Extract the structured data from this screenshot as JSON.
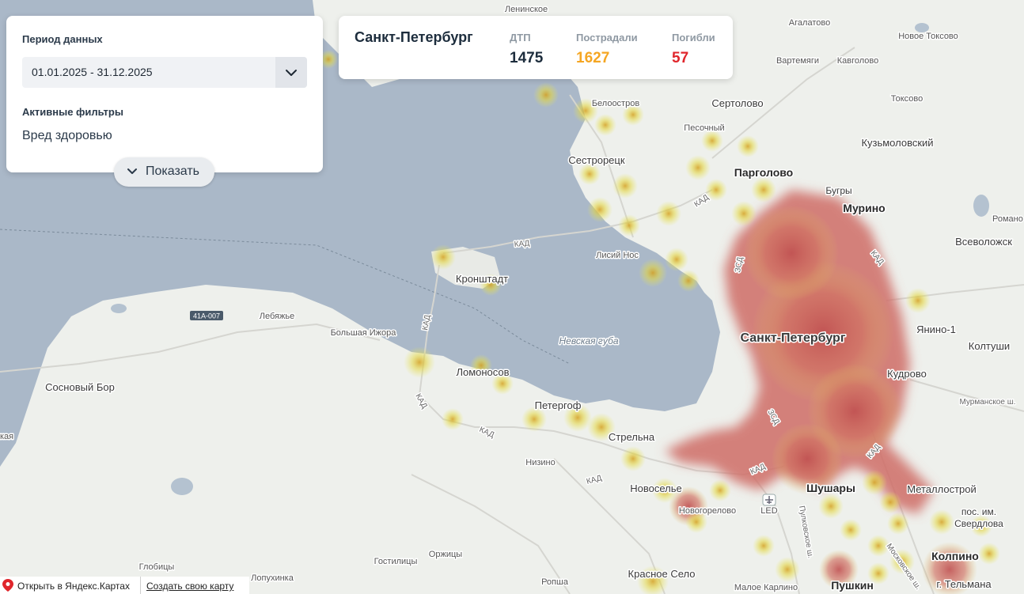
{
  "filter_panel": {
    "period_label": "Период данных",
    "period_value": "01.01.2025 - 31.12.2025",
    "active_filters_label": "Активные фильтры",
    "active_filter_value": "Вред здоровью",
    "show_button_label": "Показать"
  },
  "stats": {
    "city": "Санкт-Петербург",
    "items": [
      {
        "label": "ДТП",
        "value": "1475",
        "color": "#1d2d3d"
      },
      {
        "label": "Пострадали",
        "value": "1627",
        "color": "#f5a623"
      },
      {
        "label": "Погибли",
        "value": "57",
        "color": "#e0262c"
      }
    ]
  },
  "map": {
    "places": {
      "leninskoe": "Ленинское",
      "agalatovo": "Агалатово",
      "novoe_toksovo": "Новое Токсово",
      "vartemyagi": "Вартемяги",
      "kavgolovo": "Кавголово",
      "beloostrov": "Белоостров",
      "sertolovo": "Сертолово",
      "toksovo": "Токсово",
      "pesochny": "Песочный",
      "kuzmolovsky": "Кузьмоловский",
      "sestroretsk": "Сестрорецк",
      "pargolovo": "Парголово",
      "bugry": "Бугры",
      "murino": "Мурино",
      "romanovka": "Романо",
      "vsevolozhsk": "Всеволожск",
      "lisiy_nos": "Лисий Нос",
      "kronshtadt": "Кронштадт",
      "lebyazhye": "Лебяжье",
      "bolshaya_izhora": "Большая Ижора",
      "spb": "Санкт-Петербург",
      "yanino": "Янино-1",
      "koltushi": "Колтуши",
      "lomonosov": "Ломоносов",
      "kudrovo": "Кудрово",
      "sosnovy_bor": "Сосновый Бор",
      "peterhof": "Петергоф",
      "strelna": "Стрельна",
      "nizino": "Низино",
      "novoselye": "Новоселье",
      "shushary": "Шушары",
      "metallostroy": "Металлострой",
      "sverdlova1": "пос. им.",
      "sverdlova2": "Свердлова",
      "novogorelovo": "Новогорелово",
      "led": "LED",
      "orzhitsy": "Оржицы",
      "gostilitsy": "Гостилицы",
      "globitsy": "Глобицы",
      "lopuhinka": "Лопухинка",
      "kolpino": "Колпино",
      "krasnoe_selo": "Красное Село",
      "ropsha": "Ропша",
      "maloe_karlino": "Малое Карлино",
      "pushkin": "Пушкин",
      "g_telmana": "г. Тельмана",
      "murmansk_hwy": "Мурманское ш.",
      "moskovskoe_hwy": "Московское ш.",
      "pulkovskoe_hwy": "Пулковское ш.",
      "nevskaya_guba": "Невская губа",
      "kad": "КАД",
      "zsd": "ЗСД",
      "road_41a": "41А-007",
      "lake_left": "кая"
    }
  },
  "footer": {
    "open_yandex": "Открыть в Яндекс.Картах",
    "create_map": "Создать свою карту"
  }
}
